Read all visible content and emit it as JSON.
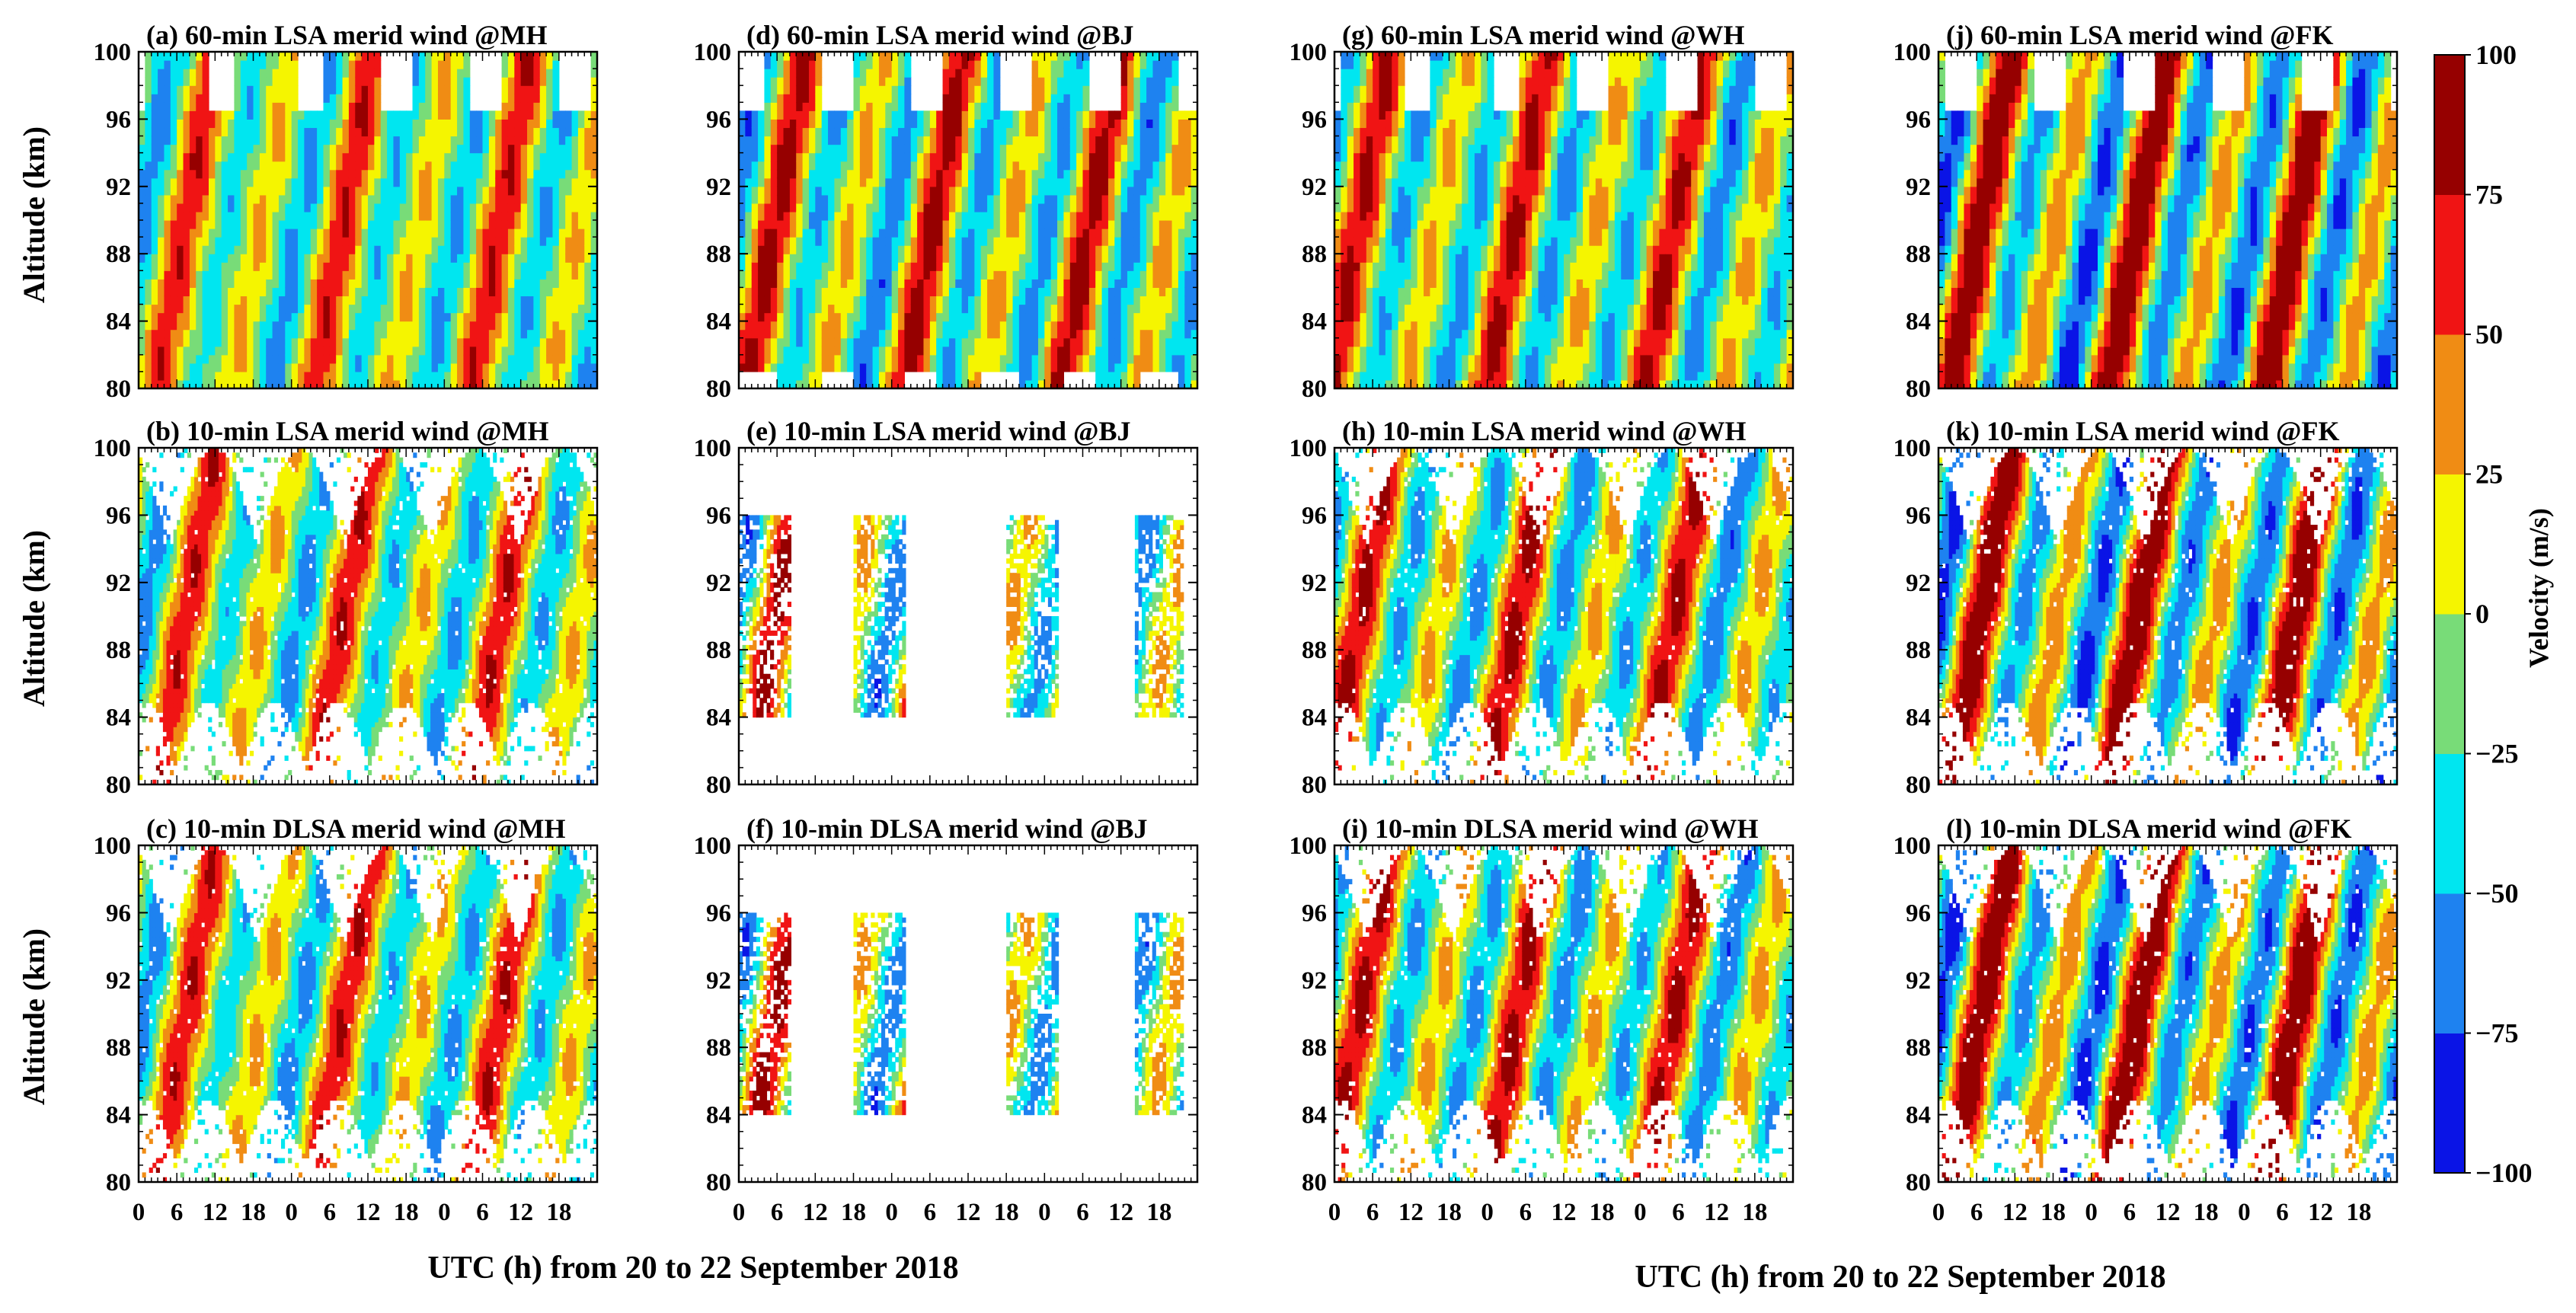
{
  "chart_data": {
    "type": "heatmap",
    "colorbar": {
      "label": "Velocity (m/s)",
      "levels": [
        -100,
        -75,
        -50,
        -25,
        0,
        25,
        50,
        75,
        100
      ],
      "tick_labels": [
        "−100",
        "−75",
        "−50",
        "−25",
        "0",
        "25",
        "50",
        "75",
        "100"
      ],
      "colors": [
        "#0a14e6",
        "#1e82f0",
        "#00e6f0",
        "#78dc78",
        "#f5f500",
        "#f08c14",
        "#f01414",
        "#960000"
      ]
    },
    "y_axis": {
      "label": "Altitude (km)",
      "range": [
        80,
        100
      ],
      "ticks": [
        80,
        84,
        88,
        92,
        96,
        100
      ]
    },
    "x_axis": {
      "labels": [
        "UTC (h) from 20 to 22 September 2018",
        "UTC (h) from 20 to 22 September 2018"
      ],
      "range_h": [
        0,
        72
      ],
      "ticks_h": [
        0,
        6,
        12,
        18,
        24,
        30,
        36,
        42,
        48,
        54,
        60,
        66
      ],
      "tick_labels": [
        "0",
        "6",
        "12",
        "18",
        "0",
        "6",
        "12",
        "18",
        "0",
        "6",
        "12",
        "18"
      ]
    },
    "panels": [
      {
        "id": "a",
        "title": "(a) 60-min LSA merid wind @MH",
        "station": "MH",
        "resolution": "60-min",
        "method": "LSA"
      },
      {
        "id": "b",
        "title": "(b) 10-min LSA merid wind @MH",
        "station": "MH",
        "resolution": "10-min",
        "method": "LSA"
      },
      {
        "id": "c",
        "title": "(c) 10-min DLSA merid wind @MH",
        "station": "MH",
        "resolution": "10-min",
        "method": "DLSA"
      },
      {
        "id": "d",
        "title": "(d) 60-min LSA merid wind @BJ",
        "station": "BJ",
        "resolution": "60-min",
        "method": "LSA"
      },
      {
        "id": "e",
        "title": "(e) 10-min LSA merid wind @BJ",
        "station": "BJ",
        "resolution": "10-min",
        "method": "LSA"
      },
      {
        "id": "f",
        "title": "(f) 10-min DLSA merid wind @BJ",
        "station": "BJ",
        "resolution": "10-min",
        "method": "DLSA"
      },
      {
        "id": "g",
        "title": "(g) 60-min LSA merid wind @WH",
        "station": "WH",
        "resolution": "60-min",
        "method": "LSA"
      },
      {
        "id": "h",
        "title": "(h) 10-min LSA merid wind @WH",
        "station": "WH",
        "resolution": "10-min",
        "method": "LSA"
      },
      {
        "id": "i",
        "title": "(i) 10-min DLSA merid wind @WH",
        "station": "WH",
        "resolution": "10-min",
        "method": "DLSA"
      },
      {
        "id": "j",
        "title": "(j) 60-min LSA merid wind @FK",
        "station": "FK",
        "resolution": "60-min",
        "method": "LSA"
      },
      {
        "id": "k",
        "title": "(k) 10-min LSA merid wind @FK",
        "station": "FK",
        "resolution": "10-min",
        "method": "LSA"
      },
      {
        "id": "l",
        "title": "(l) 10-min DLSA merid wind @FK",
        "station": "FK",
        "resolution": "10-min",
        "method": "DLSA"
      }
    ]
  }
}
